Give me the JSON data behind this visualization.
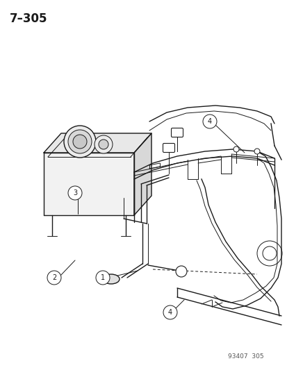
{
  "title": "7–305",
  "watermark": "93407  305",
  "bg_color": "#ffffff",
  "line_color": "#1a1a1a"
}
